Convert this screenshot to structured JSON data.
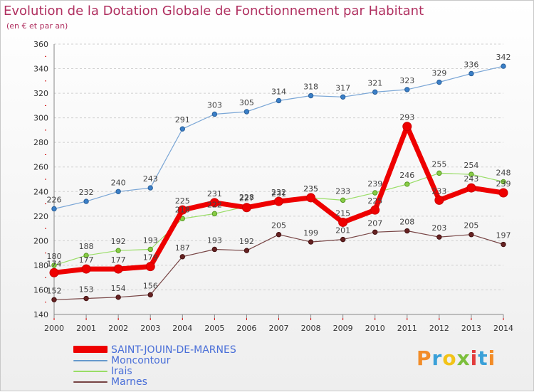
{
  "chart_data": {
    "type": "line",
    "title": "Evolution de la Dotation Globale de Fonctionnement par Habitant",
    "subtitle": "(en € et par an)",
    "x": [
      "2000",
      "2001",
      "2002",
      "2003",
      "2004",
      "2005",
      "2006",
      "2007",
      "2008",
      "2009",
      "2010",
      "2011",
      "2012",
      "2013",
      "2014"
    ],
    "ylim": [
      140,
      360
    ],
    "yticks": [
      140,
      160,
      180,
      200,
      220,
      240,
      260,
      280,
      300,
      320,
      340,
      360
    ],
    "grid": "horizontal-dashed",
    "series": [
      {
        "name": "SAINT-JOUIN-DE-MARNES",
        "color": "#ee0000",
        "values": [
          174,
          177,
          177,
          179,
          225,
          231,
          227,
          232,
          235,
          215,
          225,
          293,
          233,
          243,
          239
        ]
      },
      {
        "name": "Moncontour",
        "color": "#6699cc",
        "values": [
          226,
          232,
          240,
          243,
          291,
          303,
          305,
          314,
          318,
          317,
          321,
          323,
          329,
          336,
          342
        ]
      },
      {
        "name": "Irais",
        "color": "#99dd66",
        "values": [
          180,
          188,
          192,
          193,
          218,
          222,
          228,
          231,
          235,
          233,
          239,
          246,
          255,
          254,
          248
        ]
      },
      {
        "name": "Marnes",
        "color": "#774444",
        "values": [
          152,
          153,
          154,
          156,
          187,
          193,
          192,
          205,
          199,
          201,
          207,
          208,
          203,
          205,
          197
        ]
      }
    ]
  },
  "logo": {
    "text": "Proxiti",
    "colors": [
      "#f28c28",
      "#3aa0d8",
      "#f2c318",
      "#7cbf3c",
      "#e23b3b",
      "#3aa0d8",
      "#f28c28"
    ]
  }
}
